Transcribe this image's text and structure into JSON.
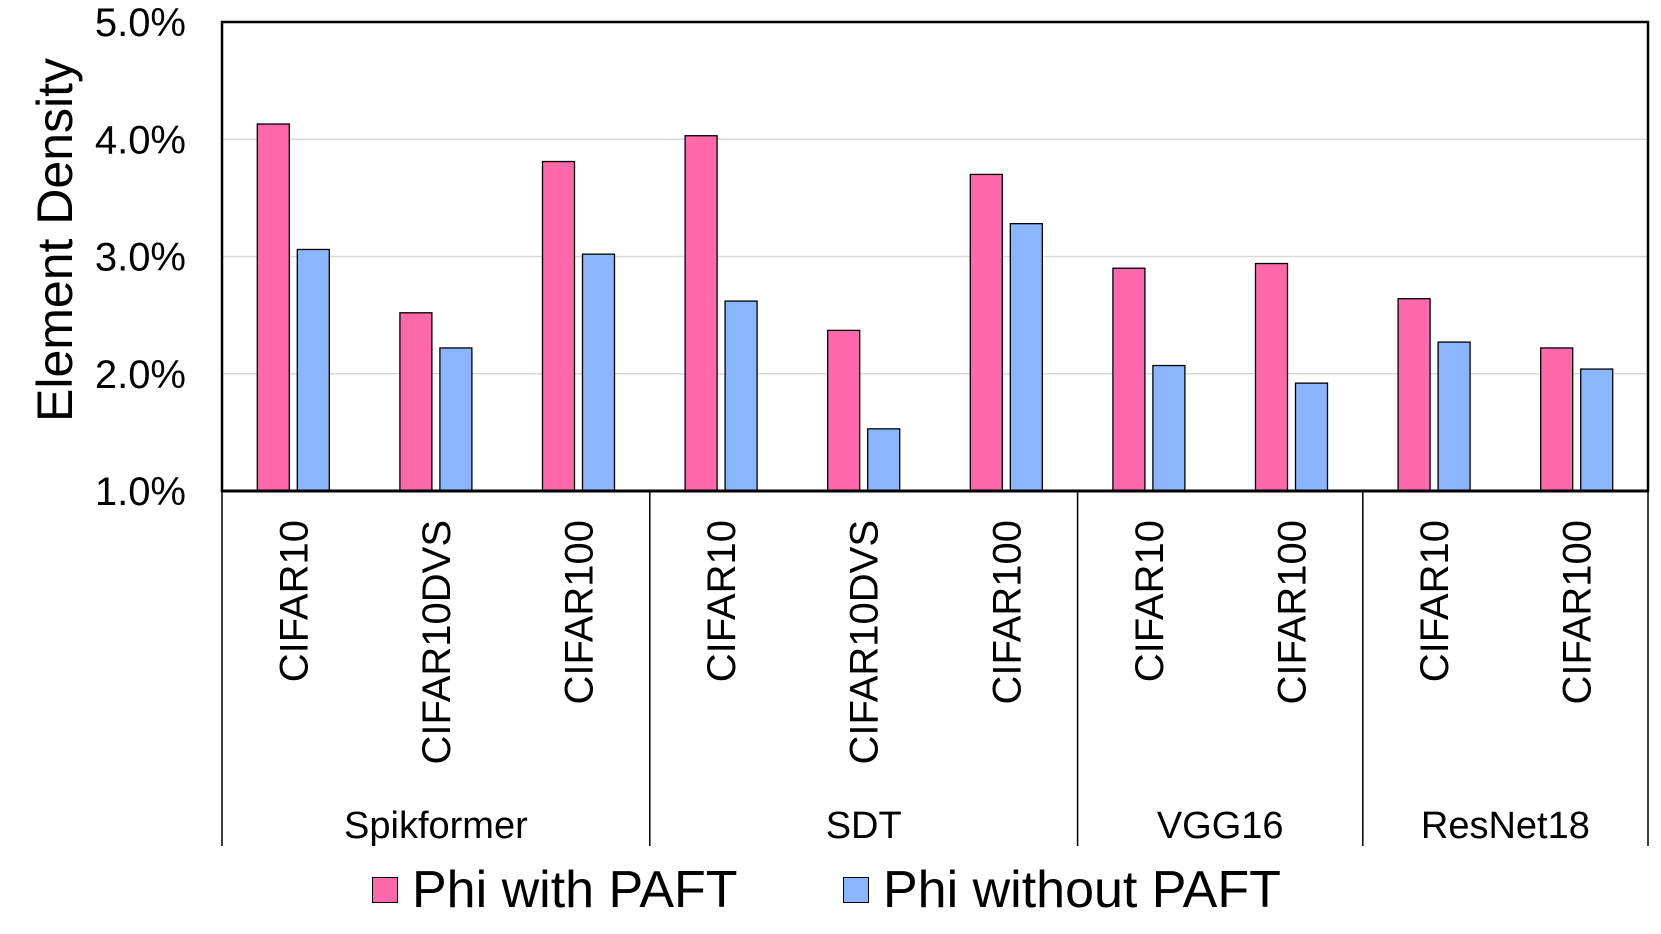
{
  "chart_data": {
    "type": "bar",
    "title": "",
    "xlabel": "",
    "ylabel": "Element Density",
    "ylim": [
      1.0,
      5.0
    ],
    "yticks": [
      "1.0%",
      "2.0%",
      "3.0%",
      "4.0%",
      "5.0%"
    ],
    "ytick_values": [
      1.0,
      2.0,
      3.0,
      4.0,
      5.0
    ],
    "grid": true,
    "legend_position": "bottom",
    "groups": [
      {
        "name": "Spikformer",
        "categories": [
          "CIFAR10",
          "CIFAR10DVS",
          "CIFAR100"
        ]
      },
      {
        "name": "SDT",
        "categories": [
          "CIFAR10",
          "CIFAR10DVS",
          "CIFAR100"
        ]
      },
      {
        "name": "VGG16",
        "categories": [
          "CIFAR10",
          "CIFAR100"
        ]
      },
      {
        "name": "ResNet18",
        "categories": [
          "CIFAR10",
          "CIFAR100"
        ]
      }
    ],
    "series": [
      {
        "name": "Phi with PAFT",
        "color": "#ff69aa",
        "values": [
          4.13,
          2.52,
          3.81,
          4.03,
          2.37,
          3.7,
          2.9,
          2.94,
          2.64,
          2.22
        ]
      },
      {
        "name": "Phi without PAFT",
        "color": "#8ab6ff",
        "values": [
          3.06,
          2.22,
          3.02,
          2.62,
          1.53,
          3.28,
          2.07,
          1.92,
          2.27,
          2.04
        ]
      }
    ]
  }
}
